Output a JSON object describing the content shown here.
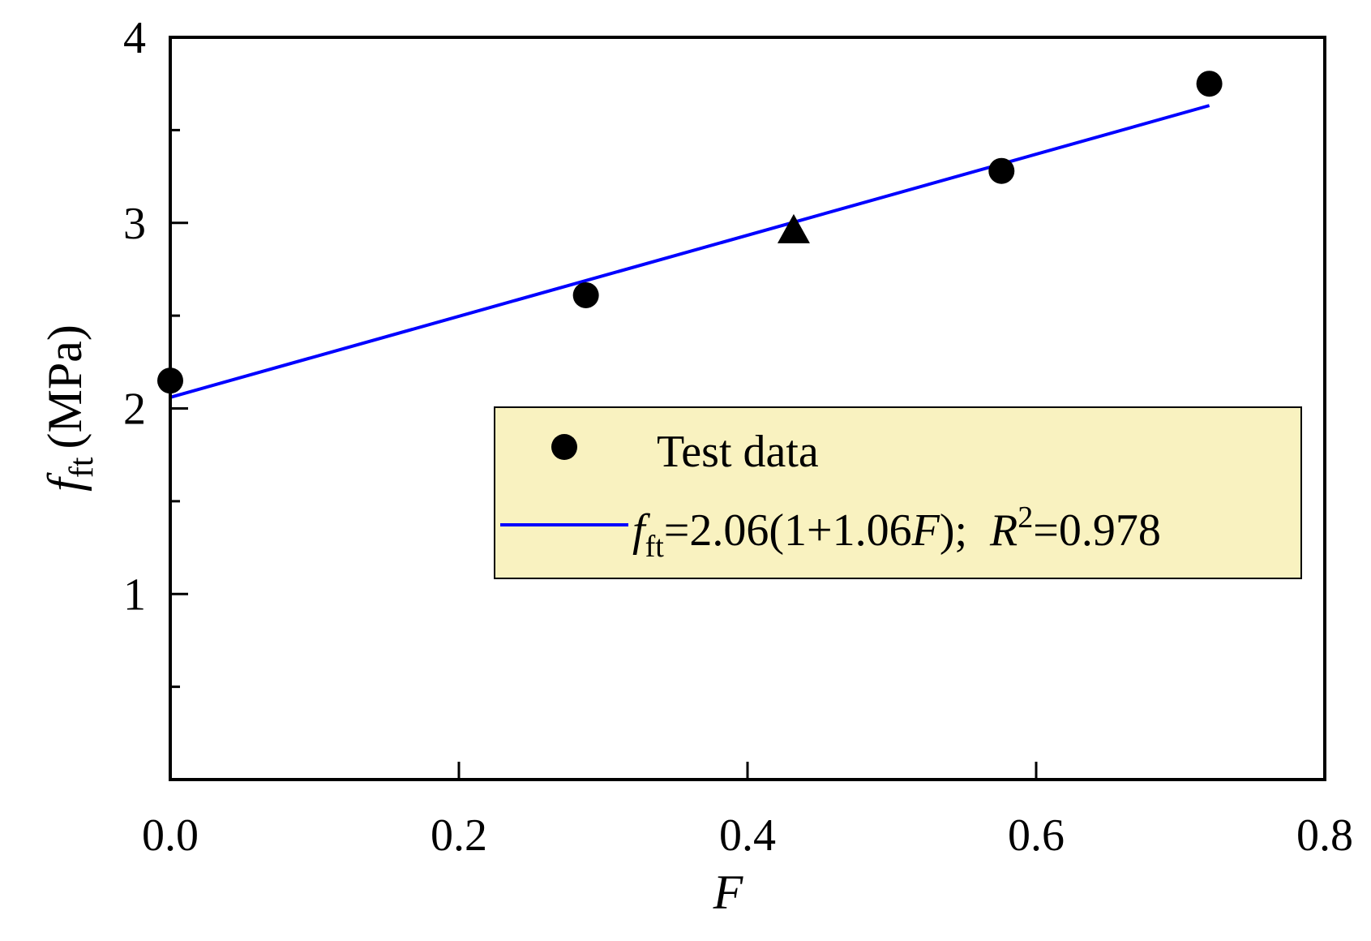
{
  "chart_data": {
    "type": "scatter",
    "xlabel": "F",
    "ylabel": {
      "symbol": "f",
      "subscript": "ft",
      "unit": "(MPa)"
    },
    "xlim": [
      0.0,
      0.8
    ],
    "ylim": [
      0,
      4
    ],
    "xticks": [
      {
        "value": 0.0,
        "label": "0.0"
      },
      {
        "value": 0.2,
        "label": "0.2"
      },
      {
        "value": 0.4,
        "label": "0.4"
      },
      {
        "value": 0.6,
        "label": "0.6"
      },
      {
        "value": 0.8,
        "label": "0.8"
      }
    ],
    "yticks": [
      {
        "value": 1,
        "label": "1"
      },
      {
        "value": 2,
        "label": "2"
      },
      {
        "value": 3,
        "label": "3"
      },
      {
        "value": 4,
        "label": "4"
      }
    ],
    "yminor": [
      0.5,
      1.5,
      2.5,
      3.5
    ],
    "grid": false,
    "legend_position": "lower-right",
    "series": [
      {
        "name": "Test data",
        "kind": "scatter",
        "marker": "circle",
        "color": "#000000",
        "points": [
          {
            "x": 0.0,
            "y": 2.15
          },
          {
            "x": 0.288,
            "y": 2.61
          },
          {
            "x": 0.576,
            "y": 3.28
          },
          {
            "x": 0.72,
            "y": 3.75
          }
        ]
      },
      {
        "kind": "scatter",
        "marker": "triangle",
        "color": "#000000",
        "points": [
          {
            "x": 0.432,
            "y": 2.95
          }
        ]
      },
      {
        "kind": "line",
        "color": "#0000ff",
        "x_range": [
          0.0,
          0.72
        ],
        "intercept": 2.06,
        "slope_factor": 1.06
      }
    ],
    "fit_label": {
      "lhs_symbol": "f",
      "lhs_sub": "ft",
      "rhs": "=2.06(1+1.06",
      "var": "F",
      "close": ");",
      "r_symbol": "R",
      "r_sup": "2",
      "r_value": "=0.978"
    },
    "legend_bg": "#f9f2c0"
  }
}
